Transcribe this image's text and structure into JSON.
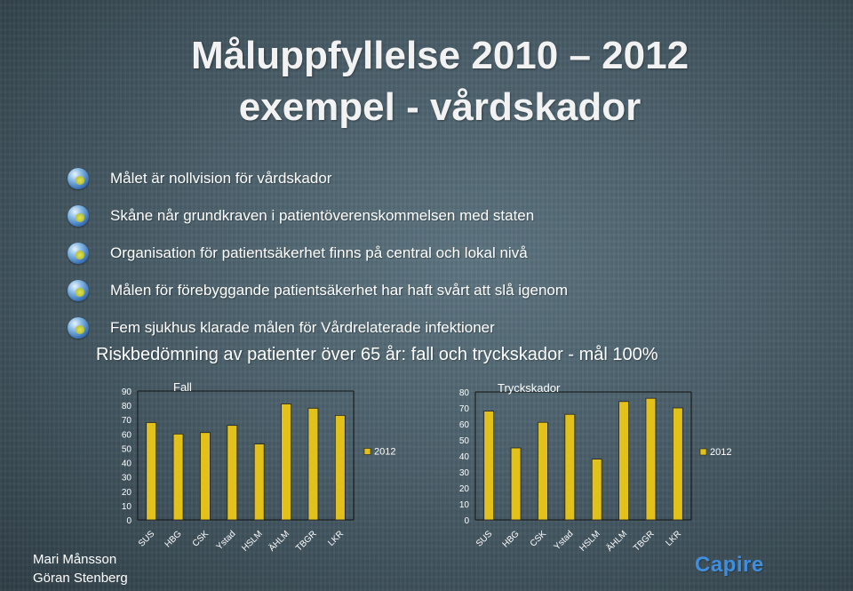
{
  "slide": {
    "title_line1": "Måluppfyllelse 2010 – 2012",
    "title_line2": "exempel - vårdskador",
    "bullets": [
      "Målet är nollvision för vårdskador",
      "Skåne når grundkraven i patientöverenskommelsen med staten",
      "Organisation för patientsäkerhet finns på central och lokal nivå",
      "Målen för förebyggande patientsäkerhet har haft svårt att slå igenom",
      "Fem sjukhus klarade målen för Vårdrelaterade infektioner"
    ],
    "risk_heading": "Riskbedömning av patienter över 65 år: fall  och tryckskador - mål 100%",
    "authors": [
      "Mari Månsson",
      "Göran Stenberg"
    ],
    "logo": "Capire",
    "bullet_icon": "orb-bullet-icon"
  },
  "chart_data": [
    {
      "type": "bar",
      "title": "Fall",
      "categories": [
        "SUS",
        "HBG",
        "CSK",
        "Ystad",
        "HSLM",
        "ÄHLM",
        "TBGR",
        "LKR"
      ],
      "series": [
        {
          "name": "2012",
          "values": [
            68,
            60,
            61,
            66,
            53,
            81,
            78,
            73
          ],
          "color": "#e2c21a"
        }
      ],
      "ylim": [
        0,
        90
      ],
      "yticks": [
        0,
        10,
        20,
        30,
        40,
        50,
        60,
        70,
        80,
        90
      ],
      "legend_position": "right",
      "grid": false
    },
    {
      "type": "bar",
      "title": "Tryckskador",
      "categories": [
        "SUS",
        "HBG",
        "CSK",
        "Ystad",
        "HSLM",
        "ÄHLM",
        "TBGR",
        "LKR"
      ],
      "series": [
        {
          "name": "2012",
          "values": [
            68,
            45,
            61,
            66,
            38,
            74,
            76,
            70
          ],
          "color": "#e2c21a"
        }
      ],
      "ylim": [
        0,
        80
      ],
      "yticks": [
        0,
        10,
        20,
        30,
        40,
        50,
        60,
        70,
        80
      ],
      "legend_position": "right",
      "grid": false
    }
  ]
}
